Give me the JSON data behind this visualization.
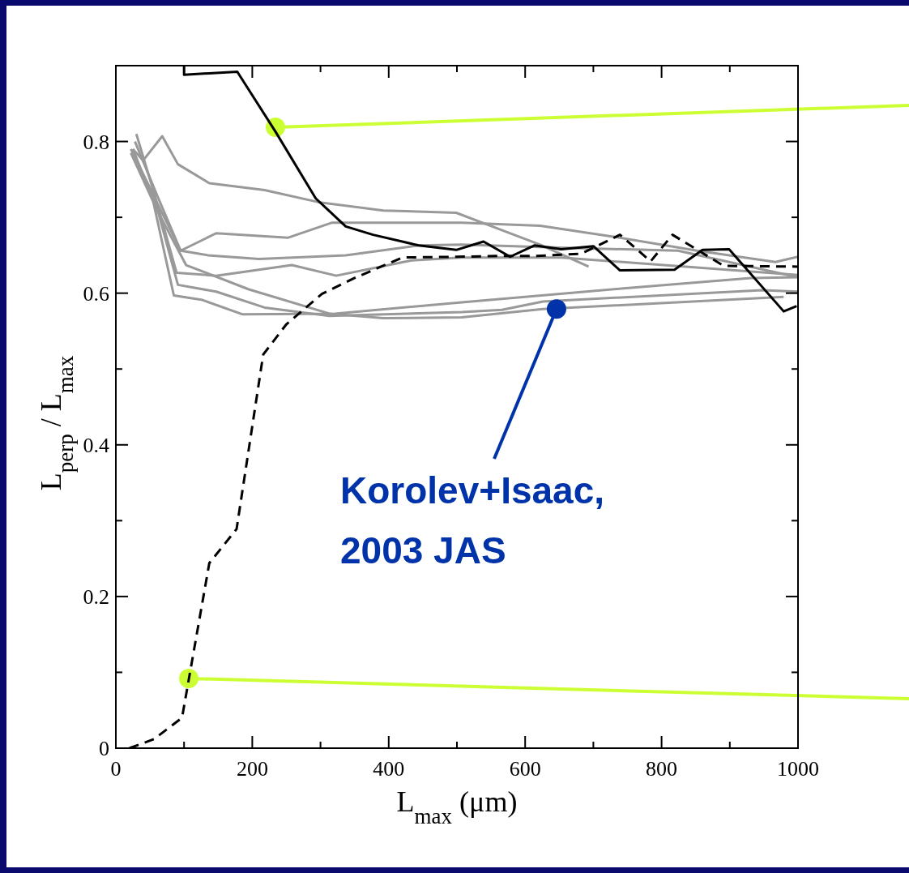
{
  "chart_data": {
    "type": "line",
    "xlabel": "L$_{max}$  (μm)",
    "ylabel": "L$_{perp}$ / L$_{max}$",
    "xlim": [
      0,
      1000
    ],
    "ylim": [
      0,
      0.9
    ],
    "xticks": [
      0,
      {
        "value": 100,
        "label": null
      },
      200,
      {
        "value": 300,
        "label": null
      },
      400,
      {
        "value": 500,
        "label": null
      },
      600,
      {
        "value": 700,
        "label": null
      },
      800,
      {
        "value": 900,
        "label": null
      },
      1000
    ],
    "yticks": [
      0,
      {
        "value": 0.1,
        "label": null
      },
      0.2,
      {
        "value": 0.3,
        "label": null
      },
      0.4,
      {
        "value": 0.5,
        "label": null
      },
      0.6,
      {
        "value": 0.7,
        "label": null
      },
      0.8
    ],
    "grid": false,
    "marker": "none",
    "series": [
      {
        "color": "#999999",
        "line_style": "solid",
        "x": [
          25,
          40,
          68,
          91,
          137,
          218,
          297,
          392,
          499,
          543,
          622,
          693
        ],
        "values": [
          0.79,
          0.775,
          0.807,
          0.77,
          0.745,
          0.736,
          0.72,
          0.709,
          0.706,
          0.691,
          0.664,
          0.635
        ]
      },
      {
        "color": "#999999",
        "line_style": "solid",
        "x": [
          25,
          60,
          95,
          147,
          252,
          317,
          507,
          622,
          733,
          852,
          967,
          1000
        ],
        "values": [
          0.78,
          0.72,
          0.656,
          0.679,
          0.673,
          0.693,
          0.693,
          0.689,
          0.674,
          0.656,
          0.641,
          0.648
        ]
      },
      {
        "color": "#999999",
        "line_style": "solid",
        "x": [
          28,
          60,
          95,
          135,
          210,
          337,
          444,
          507,
          650,
          824,
          1000
        ],
        "values": [
          0.8,
          0.73,
          0.656,
          0.65,
          0.645,
          0.65,
          0.663,
          0.664,
          0.66,
          0.656,
          0.621
        ]
      },
      {
        "color": "#999999",
        "line_style": "solid",
        "x": [
          30,
          60,
          89,
          147,
          258,
          323,
          432,
          507,
          653,
          1000
        ],
        "values": [
          0.81,
          0.72,
          0.627,
          0.623,
          0.637,
          0.623,
          0.643,
          0.647,
          0.647,
          0.624
        ]
      },
      {
        "color": "#999999",
        "line_style": "solid",
        "x": [
          25,
          60,
          103,
          195,
          313,
          392,
          507,
          626,
          979
        ],
        "values": [
          0.79,
          0.71,
          0.637,
          0.605,
          0.573,
          0.567,
          0.568,
          0.579,
          0.595
        ]
      },
      {
        "color": "#999999",
        "line_style": "solid",
        "x": [
          22,
          55,
          91,
          147,
          218,
          313,
          507,
          566,
          626,
          947,
          1000
        ],
        "values": [
          0.79,
          0.73,
          0.611,
          0.602,
          0.581,
          0.57,
          0.575,
          0.578,
          0.589,
          0.604,
          0.602
        ]
      },
      {
        "color": "#999999",
        "line_style": "solid",
        "x": [
          22,
          55,
          85,
          127,
          186,
          321,
          507,
          741,
          931,
          1000
        ],
        "values": [
          0.785,
          0.72,
          0.597,
          0.591,
          0.572,
          0.573,
          0.588,
          0.606,
          0.62,
          0.621
        ]
      },
      {
        "color": "#000000",
        "line_style": "solid",
        "x": [
          100,
          100,
          178,
          234,
          293,
          337,
          377,
          444,
          499,
          539,
          578,
          614,
          653,
          700,
          739,
          819,
          860,
          899,
          979,
          998
        ],
        "values": [
          0.9,
          0.888,
          0.892,
          0.813,
          0.725,
          0.688,
          0.677,
          0.663,
          0.657,
          0.668,
          0.648,
          0.663,
          0.658,
          0.662,
          0.63,
          0.631,
          0.657,
          0.658,
          0.576,
          0.583
        ]
      },
      {
        "color": "#000000",
        "line_style": "dashed",
        "x": [
          20,
          56,
          97,
          137,
          177,
          216,
          250,
          302,
          350,
          420,
          500,
          560,
          614,
          682,
          739,
          784,
          816,
          891,
          1000
        ],
        "values": [
          0,
          0.012,
          0.04,
          0.244,
          0.289,
          0.519,
          0.559,
          0.599,
          0.62,
          0.647,
          0.648,
          0.649,
          0.649,
          0.652,
          0.677,
          0.642,
          0.677,
          0.636,
          0.635
        ]
      }
    ],
    "annotations": [
      {
        "text": "Korolev+Isaac,\n2003 JAS",
        "x": 646,
        "y": 0.579
      }
    ]
  }
}
